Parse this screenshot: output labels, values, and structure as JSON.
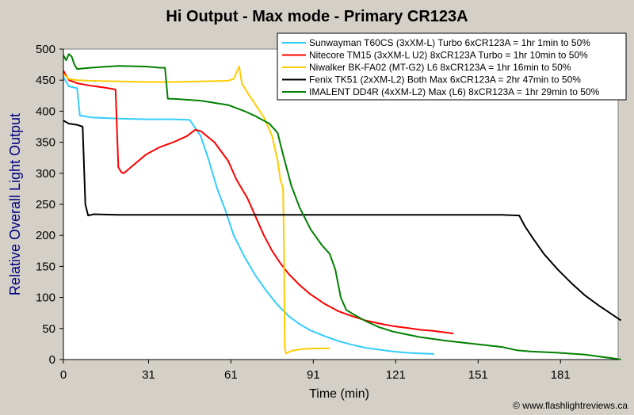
{
  "chart_data": {
    "type": "line",
    "title": "Hi Output - Max mode - Primary CR123A",
    "xlabel": "Time (min)",
    "ylabel": "Relative Overall Light Output",
    "xlim": [
      0,
      202
    ],
    "ylim": [
      0,
      500
    ],
    "xticks": [
      0,
      31,
      61,
      91,
      121,
      151,
      181
    ],
    "yticks": [
      0,
      50,
      100,
      150,
      200,
      250,
      300,
      350,
      400,
      450,
      500
    ],
    "grid": false,
    "legend_position": "top-right",
    "credit": "© www.flashlightreviews.ca",
    "background_color": "#d4d0c8",
    "plot_background": "#ffffff",
    "series": [
      {
        "name": "Sunwayman T60CS (3xXM-L) Turbo 6xCR123A = 1hr 1min to 50%",
        "color": "#33ccff",
        "points": [
          [
            0,
            455
          ],
          [
            2,
            440
          ],
          [
            5,
            437
          ],
          [
            6,
            393
          ],
          [
            10,
            390
          ],
          [
            20,
            388
          ],
          [
            30,
            387
          ],
          [
            40,
            387
          ],
          [
            46,
            386
          ],
          [
            50,
            360
          ],
          [
            53,
            320
          ],
          [
            56,
            275
          ],
          [
            59,
            240
          ],
          [
            62,
            200
          ],
          [
            66,
            165
          ],
          [
            70,
            135
          ],
          [
            74,
            110
          ],
          [
            78,
            88
          ],
          [
            82,
            70
          ],
          [
            86,
            57
          ],
          [
            90,
            47
          ],
          [
            95,
            38
          ],
          [
            100,
            30
          ],
          [
            105,
            24
          ],
          [
            110,
            19
          ],
          [
            115,
            16
          ],
          [
            120,
            13
          ],
          [
            125,
            11
          ],
          [
            130,
            10
          ],
          [
            135,
            9
          ]
        ]
      },
      {
        "name": "Nitecore TM15 (3xXM-L U2) 8xCR123A Turbo = 1hr 10min to 50%",
        "color": "#ff0000",
        "points": [
          [
            0,
            465
          ],
          [
            2,
            450
          ],
          [
            5,
            445
          ],
          [
            10,
            441
          ],
          [
            15,
            438
          ],
          [
            19,
            435
          ],
          [
            20,
            310
          ],
          [
            21,
            302
          ],
          [
            22,
            300
          ],
          [
            26,
            315
          ],
          [
            30,
            330
          ],
          [
            35,
            342
          ],
          [
            40,
            350
          ],
          [
            45,
            360
          ],
          [
            48,
            370
          ],
          [
            50,
            368
          ],
          [
            55,
            350
          ],
          [
            60,
            320
          ],
          [
            63,
            290
          ],
          [
            67,
            260
          ],
          [
            70,
            230
          ],
          [
            73,
            200
          ],
          [
            76,
            175
          ],
          [
            79,
            155
          ],
          [
            82,
            138
          ],
          [
            86,
            120
          ],
          [
            90,
            105
          ],
          [
            95,
            90
          ],
          [
            100,
            78
          ],
          [
            105,
            70
          ],
          [
            110,
            63
          ],
          [
            115,
            58
          ],
          [
            120,
            54
          ],
          [
            125,
            51
          ],
          [
            130,
            48
          ],
          [
            135,
            46
          ],
          [
            142,
            42
          ]
        ]
      },
      {
        "name": "Niwalker BK-FA02 (MT-G2) L6 8xCR123A = 1hr 16min to 50%",
        "color": "#ffcc00",
        "points": [
          [
            0,
            460
          ],
          [
            2,
            452
          ],
          [
            5,
            450
          ],
          [
            10,
            449
          ],
          [
            20,
            448
          ],
          [
            30,
            447
          ],
          [
            40,
            447
          ],
          [
            50,
            448
          ],
          [
            60,
            449
          ],
          [
            62,
            452
          ],
          [
            63,
            462
          ],
          [
            64,
            472
          ],
          [
            65,
            445
          ],
          [
            67,
            430
          ],
          [
            70,
            410
          ],
          [
            73,
            390
          ],
          [
            76,
            360
          ],
          [
            78,
            320
          ],
          [
            79,
            290
          ],
          [
            80,
            275
          ],
          [
            80.3,
            180
          ],
          [
            80.6,
            20
          ],
          [
            81,
            10
          ],
          [
            83,
            14
          ],
          [
            87,
            17
          ],
          [
            92,
            18
          ],
          [
            97,
            18
          ]
        ]
      },
      {
        "name": "Fenix TK51 (2xXM-L2) Both Max 6xCR123A = 2hr 47min to 50%",
        "color": "#000000",
        "points": [
          [
            0,
            385
          ],
          [
            2,
            380
          ],
          [
            5,
            378
          ],
          [
            7,
            375
          ],
          [
            8,
            250
          ],
          [
            9,
            232
          ],
          [
            11,
            234
          ],
          [
            20,
            233
          ],
          [
            40,
            233
          ],
          [
            60,
            233
          ],
          [
            80,
            233
          ],
          [
            100,
            233
          ],
          [
            120,
            233
          ],
          [
            140,
            233
          ],
          [
            160,
            233
          ],
          [
            166,
            232
          ],
          [
            168,
            215
          ],
          [
            171,
            195
          ],
          [
            175,
            170
          ],
          [
            180,
            145
          ],
          [
            185,
            123
          ],
          [
            190,
            103
          ],
          [
            195,
            87
          ],
          [
            200,
            72
          ],
          [
            203,
            63
          ]
        ]
      },
      {
        "name": "IMALENT DD4R (4xXM-L2) Max (L6) 8xCR123A = 1hr 29min to 50%",
        "color": "#008000",
        "points": [
          [
            0,
            490
          ],
          [
            1,
            482
          ],
          [
            2,
            492
          ],
          [
            3,
            488
          ],
          [
            4,
            475
          ],
          [
            5,
            468
          ],
          [
            10,
            470
          ],
          [
            20,
            473
          ],
          [
            30,
            472
          ],
          [
            35,
            470
          ],
          [
            37,
            470
          ],
          [
            38,
            420
          ],
          [
            40,
            420
          ],
          [
            50,
            417
          ],
          [
            60,
            410
          ],
          [
            66,
            400
          ],
          [
            70,
            392
          ],
          [
            75,
            380
          ],
          [
            78,
            365
          ],
          [
            80,
            330
          ],
          [
            83,
            280
          ],
          [
            86,
            245
          ],
          [
            90,
            210
          ],
          [
            94,
            185
          ],
          [
            97,
            170
          ],
          [
            99,
            145
          ],
          [
            101,
            100
          ],
          [
            103,
            80
          ],
          [
            106,
            72
          ],
          [
            110,
            62
          ],
          [
            115,
            52
          ],
          [
            120,
            45
          ],
          [
            130,
            36
          ],
          [
            140,
            30
          ],
          [
            150,
            25
          ],
          [
            160,
            20
          ],
          [
            165,
            15
          ],
          [
            170,
            13
          ],
          [
            180,
            11
          ],
          [
            190,
            8
          ],
          [
            195,
            5
          ],
          [
            200,
            2
          ],
          [
            203,
            0
          ]
        ]
      }
    ]
  }
}
